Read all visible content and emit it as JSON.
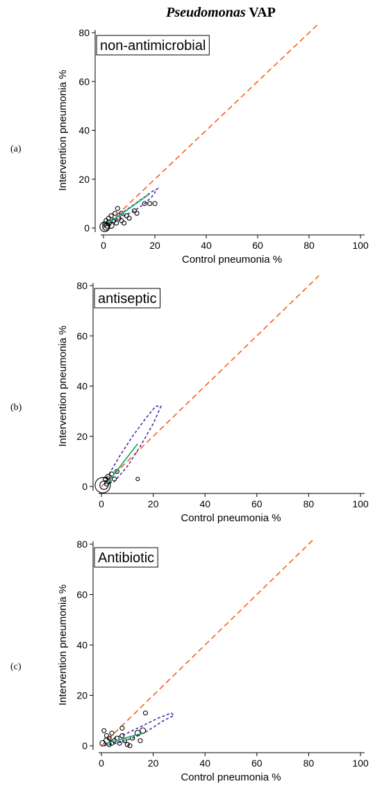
{
  "figure_title": {
    "italic": "Pseudomonas",
    "rest": " VAP"
  },
  "colors": {
    "identity_line": "#ff5a1f",
    "ellipse": "#4b2aa8",
    "fit_line": "#1fae6a",
    "points": "#000000",
    "axis": "#000000"
  },
  "chart_data": [
    {
      "type": "scatter",
      "panel_label": "(a)",
      "box_label": "non-antimicrobial",
      "xlabel": "Control pneumonia %",
      "ylabel": "Intervention pneumonia %",
      "xlim": [
        0,
        100
      ],
      "ylim": [
        0,
        80
      ],
      "xticks": [
        0,
        20,
        40,
        60,
        80,
        100
      ],
      "yticks": [
        0,
        20,
        40,
        60,
        80
      ],
      "grid": false,
      "identity_line": {
        "x": [
          0,
          84
        ],
        "y": [
          0,
          84
        ]
      },
      "fit_line": {
        "x": [
          2,
          18
        ],
        "y": [
          2,
          14
        ]
      },
      "ellipse_points": [
        [
          1,
          1
        ],
        [
          4,
          3
        ],
        [
          8,
          5
        ],
        [
          12,
          7
        ],
        [
          16,
          10
        ],
        [
          19,
          13
        ],
        [
          21,
          16
        ],
        [
          19,
          15
        ],
        [
          15,
          12
        ],
        [
          11,
          9
        ],
        [
          7,
          6
        ],
        [
          3,
          3
        ],
        [
          1,
          1
        ]
      ],
      "points": [
        {
          "x": 0.5,
          "y": 0.5,
          "r": 7
        },
        {
          "x": 1,
          "y": 0.5,
          "r": 5
        },
        {
          "x": 1.5,
          "y": 1,
          "r": 4
        },
        {
          "x": 2,
          "y": 2,
          "r": 4
        },
        {
          "x": 2,
          "y": 4,
          "r": 3
        },
        {
          "x": 3,
          "y": 1,
          "r": 4
        },
        {
          "x": 3,
          "y": 5,
          "r": 3
        },
        {
          "x": 4,
          "y": 3,
          "r": 3
        },
        {
          "x": 4.5,
          "y": 6,
          "r": 3
        },
        {
          "x": 5,
          "y": 2,
          "r": 3
        },
        {
          "x": 5.5,
          "y": 8,
          "r": 3
        },
        {
          "x": 6,
          "y": 4,
          "r": 3
        },
        {
          "x": 7,
          "y": 3,
          "r": 3
        },
        {
          "x": 7,
          "y": 6,
          "r": 3
        },
        {
          "x": 8,
          "y": 2,
          "r": 3
        },
        {
          "x": 9,
          "y": 5,
          "r": 3
        },
        {
          "x": 10,
          "y": 4,
          "r": 3
        },
        {
          "x": 12,
          "y": 7,
          "r": 3
        },
        {
          "x": 13,
          "y": 6,
          "r": 3
        },
        {
          "x": 16,
          "y": 10,
          "r": 3
        },
        {
          "x": 18,
          "y": 10,
          "r": 3
        },
        {
          "x": 20,
          "y": 10,
          "r": 3
        },
        {
          "x": 1,
          "y": 3,
          "r": 3
        },
        {
          "x": 0.5,
          "y": 1.5,
          "r": 3
        }
      ]
    },
    {
      "type": "scatter",
      "panel_label": "(b)",
      "box_label": "antiseptic",
      "xlabel": "Control pneumonia %",
      "ylabel": "Intervention pneumonia %",
      "xlim": [
        0,
        100
      ],
      "ylim": [
        0,
        80
      ],
      "xticks": [
        0,
        20,
        40,
        60,
        80,
        100
      ],
      "yticks": [
        0,
        20,
        40,
        60,
        80
      ],
      "grid": false,
      "identity_line": {
        "x": [
          0,
          84
        ],
        "y": [
          0,
          84
        ]
      },
      "fit_line": {
        "x": [
          2,
          14
        ],
        "y": [
          1,
          17
        ]
      },
      "ellipse_points": [
        [
          1,
          1
        ],
        [
          5,
          2
        ],
        [
          10,
          8
        ],
        [
          15,
          16
        ],
        [
          20,
          25
        ],
        [
          23,
          32
        ],
        [
          21,
          32
        ],
        [
          17,
          27
        ],
        [
          12,
          20
        ],
        [
          7,
          12
        ],
        [
          3,
          5
        ],
        [
          1,
          1
        ]
      ],
      "points": [
        {
          "x": 0.5,
          "y": 0.5,
          "r": 11
        },
        {
          "x": 1,
          "y": 0.5,
          "r": 6
        },
        {
          "x": 1.5,
          "y": 3,
          "r": 3
        },
        {
          "x": 2,
          "y": 1,
          "r": 3
        },
        {
          "x": 2.5,
          "y": 4,
          "r": 3
        },
        {
          "x": 3,
          "y": 2,
          "r": 3
        },
        {
          "x": 4,
          "y": 5,
          "r": 3
        },
        {
          "x": 5,
          "y": 3,
          "r": 3
        },
        {
          "x": 6,
          "y": 6,
          "r": 3
        },
        {
          "x": 14,
          "y": 3,
          "r": 2.5
        }
      ]
    },
    {
      "type": "scatter",
      "panel_label": "(c)",
      "box_label": "Antibiotic",
      "xlabel": "Control pneumonia %",
      "ylabel": "Intervention pneumonia %",
      "xlim": [
        0,
        100
      ],
      "ylim": [
        0,
        80
      ],
      "xticks": [
        0,
        20,
        40,
        60,
        80,
        100
      ],
      "yticks": [
        0,
        20,
        40,
        60,
        80
      ],
      "grid": false,
      "identity_line": {
        "x": [
          0,
          82
        ],
        "y": [
          0,
          82
        ]
      },
      "fit_line": {
        "x": [
          2,
          16
        ],
        "y": [
          1,
          5
        ]
      },
      "ellipse_points": [
        [
          1,
          0
        ],
        [
          6,
          1
        ],
        [
          12,
          3
        ],
        [
          18,
          6
        ],
        [
          24,
          10
        ],
        [
          28,
          12
        ],
        [
          27,
          13
        ],
        [
          22,
          11
        ],
        [
          16,
          8
        ],
        [
          10,
          5
        ],
        [
          5,
          3
        ],
        [
          1,
          0
        ]
      ],
      "points": [
        {
          "x": 0.5,
          "y": 1,
          "r": 4
        },
        {
          "x": 1,
          "y": 6,
          "r": 3
        },
        {
          "x": 2,
          "y": 2,
          "r": 4
        },
        {
          "x": 3,
          "y": 0.5,
          "r": 3
        },
        {
          "x": 3,
          "y": 3,
          "r": 3
        },
        {
          "x": 4,
          "y": 1,
          "r": 3
        },
        {
          "x": 4,
          "y": 5,
          "r": 3
        },
        {
          "x": 5,
          "y": 2,
          "r": 3
        },
        {
          "x": 6,
          "y": 3,
          "r": 3
        },
        {
          "x": 7,
          "y": 1,
          "r": 3
        },
        {
          "x": 8,
          "y": 4,
          "r": 3
        },
        {
          "x": 8,
          "y": 7,
          "r": 3
        },
        {
          "x": 9,
          "y": 2,
          "r": 3
        },
        {
          "x": 10,
          "y": 0.5,
          "r": 3
        },
        {
          "x": 11,
          "y": 0,
          "r": 3
        },
        {
          "x": 12,
          "y": 3,
          "r": 3
        },
        {
          "x": 14,
          "y": 5,
          "r": 4
        },
        {
          "x": 15,
          "y": 2,
          "r": 3
        },
        {
          "x": 16,
          "y": 6,
          "r": 4
        },
        {
          "x": 17,
          "y": 13,
          "r": 3
        },
        {
          "x": 2,
          "y": 4,
          "r": 3
        }
      ]
    }
  ]
}
